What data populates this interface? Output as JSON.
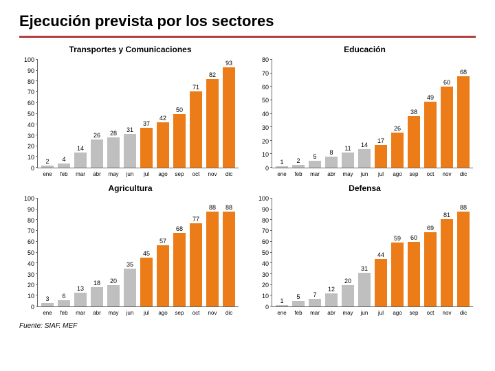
{
  "title": "Ejecución prevista por los sectores",
  "source": "Fuente: SIAF. MEF",
  "colors": {
    "gray": "#bfbfbf",
    "orange": "#ec7c18",
    "axis": "#666666",
    "rule": "#b43d3d",
    "text": "#000000",
    "background": "#ffffff"
  },
  "months": [
    "ene",
    "feb",
    "mar",
    "abr",
    "may",
    "jun",
    "jul",
    "ago",
    "sep",
    "oct",
    "nov",
    "dic"
  ],
  "gray_count": 6,
  "panels": [
    {
      "title": "Transportes y Comunicaciones",
      "ylim": [
        0,
        100
      ],
      "ytick_step": 10,
      "label_fontsize": 9,
      "values": [
        2,
        4,
        14,
        26,
        28,
        31,
        37,
        42,
        50,
        71,
        82,
        93
      ]
    },
    {
      "title": "Educación",
      "ylim": [
        0,
        80
      ],
      "ytick_step": 10,
      "label_fontsize": 9,
      "values": [
        1,
        2,
        5,
        8,
        11,
        14,
        17,
        26,
        38,
        49,
        60,
        68
      ]
    },
    {
      "title": "Agricultura",
      "ylim": [
        0,
        100
      ],
      "ytick_step": 10,
      "label_fontsize": 9,
      "values": [
        3,
        6,
        13,
        18,
        20,
        35,
        45,
        57,
        68,
        77,
        88,
        88
      ]
    },
    {
      "title": "Defensa",
      "ylim": [
        0,
        100
      ],
      "ytick_step": 10,
      "label_fontsize": 9,
      "values": [
        1,
        5,
        7,
        12,
        20,
        31,
        44,
        59,
        60,
        69,
        81,
        88
      ]
    }
  ]
}
